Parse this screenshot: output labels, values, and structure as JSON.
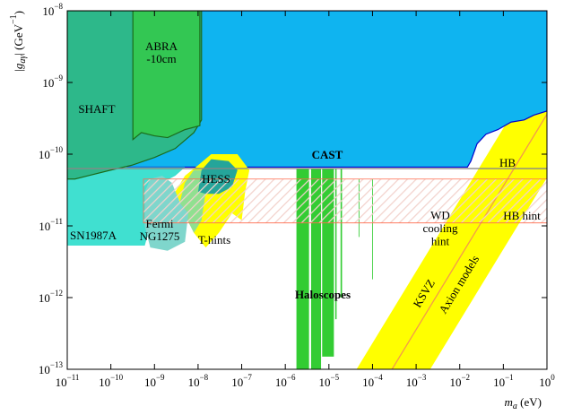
{
  "chart_data": {
    "type": "region",
    "xlabel": "ma (eV)",
    "ylabel": "|gaγ| (GeV−1)",
    "xscale": "log",
    "yscale": "log",
    "xlim": [
      1e-11,
      1
    ],
    "ylim": [
      1e-13,
      1e-08
    ],
    "xticks": [
      {
        "value": 1e-11,
        "label": "10−11"
      },
      {
        "value": 1e-10,
        "label": "10−10"
      },
      {
        "value": 1e-09,
        "label": "10−9"
      },
      {
        "value": 1e-08,
        "label": "10−8"
      },
      {
        "value": 1e-07,
        "label": "10−7"
      },
      {
        "value": 1e-06,
        "label": "10−6"
      },
      {
        "value": 1e-05,
        "label": "10−5"
      },
      {
        "value": 0.0001,
        "label": "10−4"
      },
      {
        "value": 0.001,
        "label": "10−3"
      },
      {
        "value": 0.01,
        "label": "10−2"
      },
      {
        "value": 0.1,
        "label": "10−1"
      },
      {
        "value": 1,
        "label": "100"
      }
    ],
    "yticks": [
      {
        "value": 1e-13,
        "label": "10−13"
      },
      {
        "value": 1e-12,
        "label": "10−12"
      },
      {
        "value": 1e-11,
        "label": "10−11"
      },
      {
        "value": 1e-10,
        "label": "10−10"
      },
      {
        "value": 1e-09,
        "label": "10−9"
      },
      {
        "value": 1e-08,
        "label": "10−8"
      }
    ],
    "series": [
      {
        "name": "Axion models",
        "kind": "area",
        "color": "#ffff00",
        "label_color": "#000000",
        "x": [
          4.3e-05,
          0.0021,
          1,
          1
        ],
        "y": [
          1e-13,
          1e-13,
          4.7e-11,
          2.3e-09
        ]
      },
      {
        "name": "KSVZ",
        "kind": "line",
        "color": "#f39a4a",
        "label_color": "#000000",
        "x": [
          0.00028,
          1
        ],
        "y": [
          1e-13,
          3.6e-10
        ]
      },
      {
        "name": "CAST",
        "kind": "area",
        "color": "#0fb4f0",
        "edge": "#0000cc",
        "label_color": "#0000dd",
        "x": [
          1e-11,
          1,
          1,
          0.5,
          0.3,
          0.15,
          0.075,
          0.04,
          0.025,
          0.018,
          0.015,
          1e-11
        ],
        "y": [
          1e-08,
          1e-08,
          4e-10,
          3.5e-10,
          3e-10,
          2.8e-10,
          2.2e-10,
          1.9e-10,
          1.4e-10,
          8e-11,
          6.6e-11,
          6.6e-11
        ]
      },
      {
        "name": "SN1987A",
        "kind": "area",
        "color": "#40e0d0",
        "label_color": "#000000",
        "x": [
          1e-11,
          5e-09,
          3e-09,
          1.5e-09,
          1e-09,
          8e-10,
          6e-10,
          1e-11
        ],
        "y": [
          6.6e-11,
          6.6e-11,
          5e-11,
          4e-11,
          2e-11,
          1e-11,
          5.3e-12,
          5.3e-12
        ]
      },
      {
        "name": "SHAFT",
        "kind": "area",
        "color": "#2db88a",
        "edge": "#1b6b1b",
        "label_color": "#000000",
        "x": [
          1e-11,
          1.2e-08,
          1.2e-08,
          8e-09,
          3e-09,
          1e-09,
          3e-10,
          1e-10,
          3e-11,
          1.5e-11,
          1e-11
        ],
        "y": [
          1e-08,
          1e-08,
          3e-10,
          2e-10,
          1.2e-10,
          9e-11,
          7e-11,
          6e-11,
          5e-11,
          4.5e-11,
          4.5e-11
        ]
      },
      {
        "name": "ABRA\n-10cm",
        "kind": "area",
        "color": "#33c753",
        "edge": "#1b6b1b",
        "label_color": "#000000",
        "x": [
          3.2e-10,
          1.1e-08,
          1.1e-08,
          5e-09,
          2e-09,
          1e-09,
          5e-10,
          3.2e-10
        ],
        "y": [
          1e-08,
          1e-08,
          2.5e-10,
          2.2e-10,
          1.7e-10,
          1.8e-10,
          2e-10,
          1.6e-10
        ]
      },
      {
        "name": "T-hints",
        "kind": "area",
        "color": "#ffff00",
        "label_color": "#ee3333",
        "x": [
          3e-09,
          5e-09,
          1e-08,
          2e-08,
          8e-08,
          1.5e-07,
          1.2e-07,
          1e-07,
          6e-08,
          3e-08,
          1.5e-08,
          8e-09,
          5e-09
        ],
        "y": [
          3e-11,
          5e-11,
          7e-11,
          1e-10,
          1e-10,
          6e-11,
          3e-11,
          1.2e-11,
          1.5e-11,
          8e-12,
          5e-12,
          8e-12,
          1.5e-11
        ]
      },
      {
        "kind": "area",
        "color": "#90e090",
        "x": [
          3.7e-09,
          5e-09,
          8e-09,
          1.2e-08,
          1.5e-08,
          1.2e-08,
          8e-09
        ],
        "y": [
          2e-11,
          4e-11,
          6e-11,
          6e-11,
          3e-11,
          1.2e-11,
          8e-12
        ]
      },
      {
        "name": "Fermi\nNG1275",
        "kind": "area",
        "color": "#7fd6cc",
        "label_color": "#000000",
        "x": [
          6e-10,
          8e-10,
          1.5e-09,
          2.5e-09,
          4e-09,
          6e-09,
          5e-09,
          2e-09,
          8e-10,
          6e-10
        ],
        "y": [
          3e-11,
          4.5e-11,
          5e-11,
          4e-11,
          2e-11,
          1.5e-11,
          6e-12,
          4.5e-12,
          5e-12,
          1e-11
        ]
      },
      {
        "name": "HESS",
        "kind": "area",
        "color": "#25a59a",
        "label_color": "#000000",
        "x": [
          1e-08,
          1.2e-08,
          2e-08,
          5e-08,
          8e-08,
          6e-08,
          3e-08,
          1.5e-08
        ],
        "y": [
          3e-11,
          6e-11,
          8.5e-11,
          8e-11,
          6e-11,
          3.5e-11,
          2.8e-11,
          2.8e-11
        ]
      },
      {
        "name": "Haloscopes",
        "kind": "area",
        "color": "#33cc33",
        "label_color": "#000000",
        "x": [
          1.8e-06,
          3.5e-06,
          3.5e-06,
          1.8e-06,
          null,
          3.9e-06,
          6.6e-06,
          6.6e-06,
          3.9e-06,
          null,
          7e-06,
          1.3e-05,
          1.3e-05,
          7e-06,
          null,
          1.4e-05,
          1.5e-05,
          1.5e-05,
          1.4e-05,
          null,
          1.85e-05,
          2e-05,
          2e-05,
          1.85e-05,
          null,
          4.8e-05,
          5e-05,
          5e-05,
          4.8e-05,
          null,
          9.8e-05,
          0.000102,
          0.000102,
          9.8e-05
        ],
        "y": [
          1e-13,
          1e-13,
          6.3e-11,
          6.3e-11,
          null,
          1e-13,
          1e-13,
          6.3e-11,
          6.3e-11,
          null,
          1.5e-13,
          1.5e-13,
          6.3e-11,
          6.3e-11,
          null,
          5e-13,
          5e-13,
          6.3e-11,
          6.3e-11,
          null,
          1e-12,
          1e-12,
          6.3e-11,
          6.3e-11,
          null,
          7e-12,
          7e-12,
          4.5e-11,
          4.5e-11,
          null,
          1.8e-12,
          1.8e-12,
          4.5e-11,
          4.5e-11
        ]
      },
      {
        "name": "HB hint",
        "kind": "hatch",
        "color": "#ff6a4d",
        "label_color": "#ee3333",
        "x": [
          5.6e-10,
          1,
          1,
          5.6e-10
        ],
        "y": [
          1.1e-11,
          1.1e-11,
          4.5e-11,
          4.5e-11
        ]
      },
      {
        "name": "HB",
        "kind": "line",
        "color": "#888888",
        "label_color": "#000000",
        "x": [
          1e-11,
          1
        ],
        "y": [
          6.3e-11,
          6.3e-11
        ]
      }
    ],
    "annotations": [
      {
        "text": "WD\ncooling\nhint",
        "color": "#ee3333"
      }
    ]
  }
}
